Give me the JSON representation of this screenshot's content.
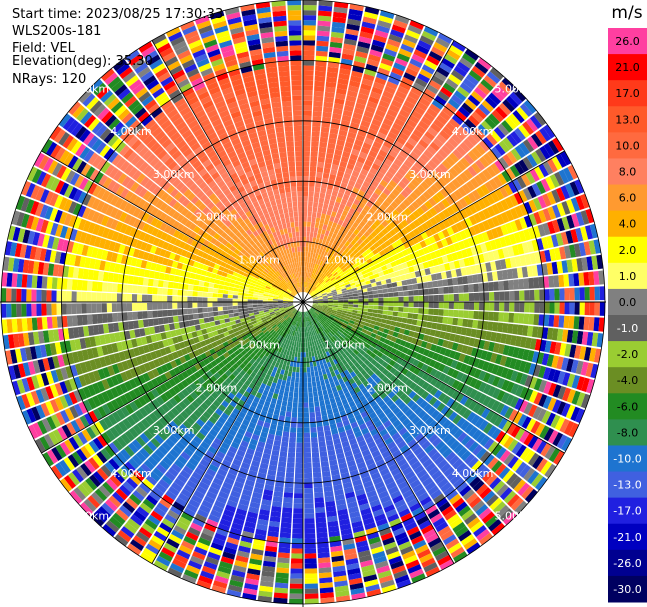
{
  "info": {
    "start_time": "Start time: 2023/08/25 17:30:33",
    "station": "WLS200s-181",
    "field": "Field: VEL",
    "elevation": "Elevation(deg): 35.30",
    "nrays": "NRays: 120"
  },
  "chart_data": {
    "type": "ppi",
    "field": "VEL",
    "units": "m/s",
    "n_rays": 120,
    "range_rings_km": [
      1.0,
      2.0,
      3.0,
      4.0,
      5.0
    ],
    "range_ring_labels": [
      "1.00km",
      "2.00km",
      "3.00km",
      "4.00km",
      "5.00km"
    ],
    "max_range_km": 5.0,
    "colorbar": {
      "title": "m/s",
      "tick_labels": [
        "26.0",
        "21.0",
        "17.0",
        "13.0",
        "10.0",
        "8.0",
        "6.0",
        "4.0",
        "2.0",
        "1.0",
        "0.0",
        "-1.0",
        "-2.0",
        "-4.0",
        "-6.0",
        "-8.0",
        "-10.0",
        "-13.0",
        "-17.0",
        "-21.0",
        "-26.0",
        "-30.0"
      ],
      "colors": [
        "#ff3fa0",
        "#ff0000",
        "#ff3a1a",
        "#ff5a2a",
        "#ff6a3f",
        "#ff8060",
        "#ff9a30",
        "#ffb000",
        "#ffff00",
        "#ffff66",
        "#808080",
        "#606060",
        "#9acd32",
        "#6b8e23",
        "#228b22",
        "#2f8f4f",
        "#1e74d0",
        "#4060e0",
        "#2020e0",
        "#0000c0",
        "#000090",
        "#000060"
      ]
    }
  }
}
